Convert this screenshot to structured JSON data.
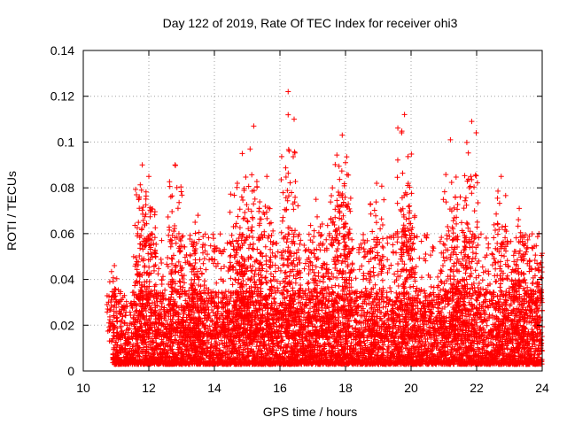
{
  "chart_data": {
    "type": "scatter",
    "title": "Day 122 of 2019, Rate Of TEC Index for receiver ohi3",
    "xlabel": "GPS time / hours",
    "ylabel": "ROTI / TECUs",
    "xlim": [
      10,
      24
    ],
    "ylim": [
      0,
      0.14
    ],
    "xticks": [
      10,
      12,
      14,
      16,
      18,
      20,
      22,
      24
    ],
    "xtick_labels": [
      "10",
      "12",
      "14",
      "16",
      "18",
      "20",
      "22",
      "24"
    ],
    "yticks": [
      0,
      0.02,
      0.04,
      0.06,
      0.08,
      0.1,
      0.12,
      0.14
    ],
    "ytick_labels": [
      "0",
      "0.02",
      "0.04",
      "0.06",
      "0.08",
      "0.1",
      "0.12",
      "0.14"
    ],
    "grid": true,
    "marker": "plus",
    "series_color": "#ff0000",
    "data_x_range": [
      10.9,
      24.0
    ],
    "baseline_range": [
      0.003,
      0.035
    ],
    "peaks": [
      {
        "x": 10.95,
        "y": 0.046
      },
      {
        "x": 11.8,
        "y": 0.09
      },
      {
        "x": 12.0,
        "y": 0.085
      },
      {
        "x": 12.8,
        "y": 0.09
      },
      {
        "x": 13.5,
        "y": 0.068
      },
      {
        "x": 14.7,
        "y": 0.082
      },
      {
        "x": 14.85,
        "y": 0.095
      },
      {
        "x": 15.2,
        "y": 0.107
      },
      {
        "x": 15.6,
        "y": 0.085
      },
      {
        "x": 16.25,
        "y": 0.122
      },
      {
        "x": 16.4,
        "y": 0.073
      },
      {
        "x": 17.1,
        "y": 0.075
      },
      {
        "x": 17.6,
        "y": 0.08
      },
      {
        "x": 17.9,
        "y": 0.103
      },
      {
        "x": 18.0,
        "y": 0.091
      },
      {
        "x": 18.95,
        "y": 0.082
      },
      {
        "x": 19.8,
        "y": 0.112
      },
      {
        "x": 19.9,
        "y": 0.081
      },
      {
        "x": 21.2,
        "y": 0.101
      },
      {
        "x": 21.5,
        "y": 0.076
      },
      {
        "x": 21.85,
        "y": 0.109
      },
      {
        "x": 22.75,
        "y": 0.085
      },
      {
        "x": 23.3,
        "y": 0.071
      },
      {
        "x": 23.9,
        "y": 0.06
      }
    ]
  }
}
